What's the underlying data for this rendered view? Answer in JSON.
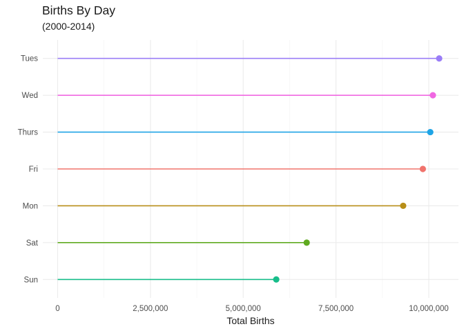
{
  "chart_data": {
    "type": "lollipop",
    "title": "Births By Day",
    "subtitle": "(2000-2014)",
    "xlabel": "Total Births",
    "ylabel": "",
    "xlim": [
      -400000,
      10800000
    ],
    "x_ticks": [
      0,
      2500000,
      5000000,
      7500000,
      10000000
    ],
    "x_tick_labels": [
      "0",
      "2,500,000",
      "5,000,000",
      "7,500,000",
      "10,000,000"
    ],
    "categories": [
      "Tues",
      "Wed",
      "Thurs",
      "Fri",
      "Mon",
      "Sat",
      "Sun"
    ],
    "values": [
      10280000,
      10110000,
      10040000,
      9840000,
      9310000,
      6710000,
      5890000
    ],
    "colors": [
      "#9A7DF7",
      "#F067E2",
      "#1EA4E6",
      "#F0736C",
      "#B78E18",
      "#5FAA20",
      "#17BD8A"
    ],
    "grid": true,
    "legend": "none"
  }
}
